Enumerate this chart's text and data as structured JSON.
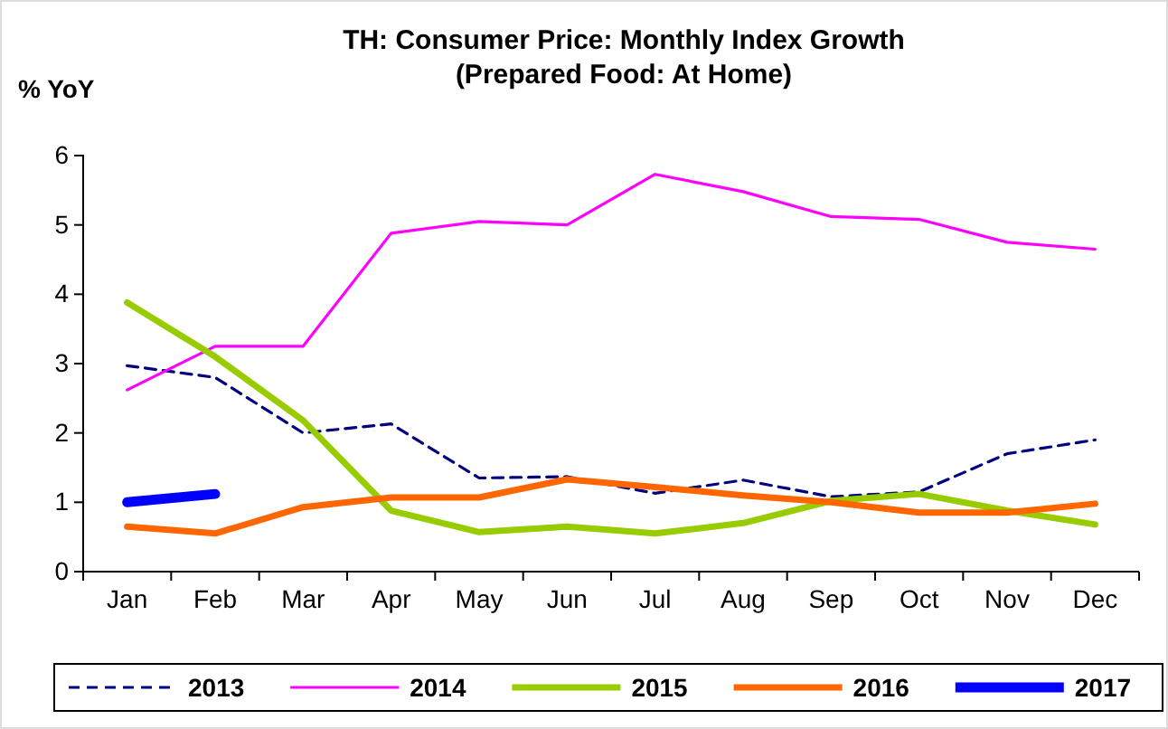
{
  "chart_data": {
    "type": "line",
    "title": "TH: Consumer Price: Monthly Index Growth\n(Prepared Food: At Home)",
    "ylabel": "% YoY",
    "categories": [
      "Jan",
      "Feb",
      "Mar",
      "Apr",
      "May",
      "Jun",
      "Jul",
      "Aug",
      "Sep",
      "Oct",
      "Nov",
      "Dec"
    ],
    "series": [
      {
        "name": "2013",
        "color": "#000080",
        "line_style": "dashed",
        "values": [
          2.97,
          2.8,
          2.0,
          2.13,
          1.35,
          1.37,
          1.13,
          1.32,
          1.08,
          1.15,
          1.7,
          1.9
        ]
      },
      {
        "name": "2014",
        "color": "#ff00ff",
        "values": [
          2.62,
          3.25,
          3.25,
          4.88,
          5.05,
          5.0,
          5.73,
          5.48,
          5.12,
          5.08,
          4.75,
          4.65
        ]
      },
      {
        "name": "2015",
        "color": "#99cc00",
        "values": [
          3.88,
          3.1,
          2.18,
          0.88,
          0.57,
          0.65,
          0.55,
          0.7,
          1.02,
          1.12,
          0.88,
          0.68
        ]
      },
      {
        "name": "2016",
        "color": "#ff6600",
        "values": [
          0.65,
          0.55,
          0.93,
          1.07,
          1.07,
          1.33,
          1.22,
          1.1,
          1.0,
          0.85,
          0.85,
          0.98
        ]
      },
      {
        "name": "2017",
        "color": "#0000ff",
        "values": [
          1.0,
          1.12,
          null,
          null,
          null,
          null,
          null,
          null,
          null,
          null,
          null,
          null
        ]
      }
    ],
    "ylim": [
      0,
      6
    ],
    "yticks": [
      0,
      1,
      2,
      3,
      4,
      5,
      6
    ],
    "grid": false,
    "legend": "bottom",
    "marker": "none"
  }
}
